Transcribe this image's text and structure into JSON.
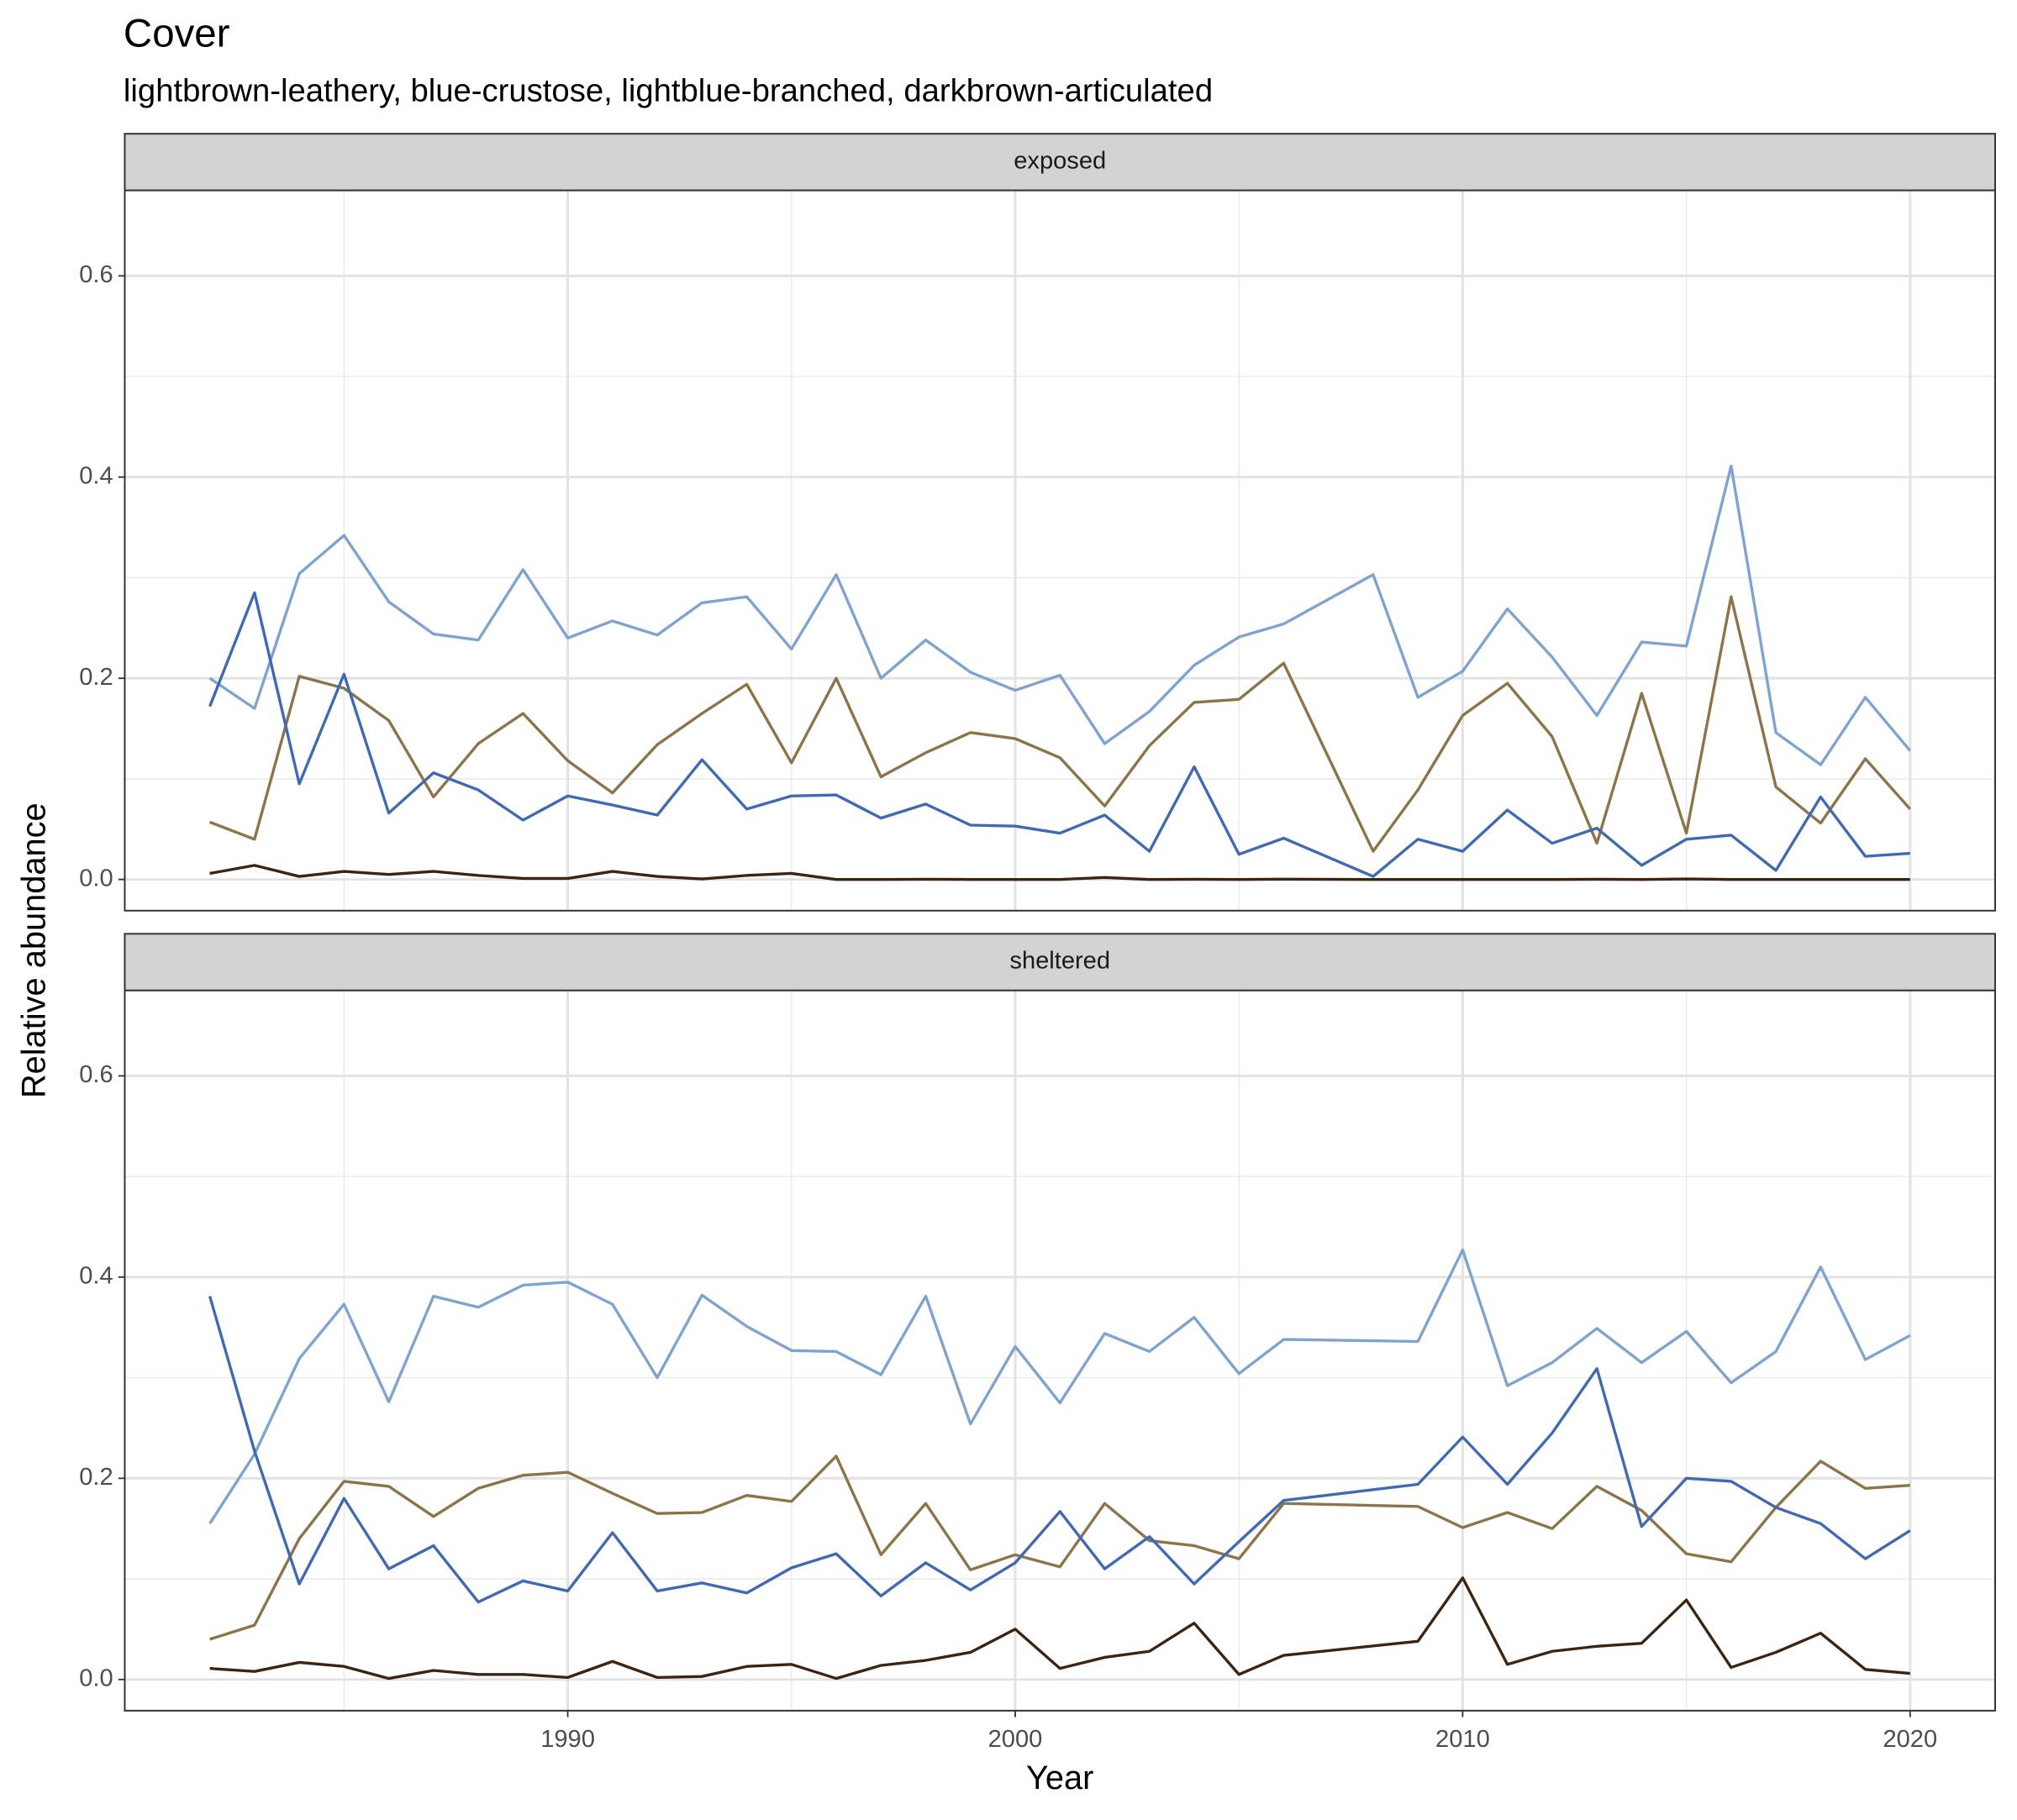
{
  "chart_data": {
    "type": "line",
    "title": "Cover",
    "subtitle": "lightbrown-leathery, blue-crustose, lightblue-branched, darkbrown-articulated",
    "x_label": "Year",
    "y_label": "Relative abundance",
    "xlim": [
      1980.1,
      2021.9
    ],
    "xticks": [
      1990,
      2000,
      2010,
      2020
    ],
    "ylim": [
      -0.031,
      0.685
    ],
    "yticks": [
      {
        "value": 0,
        "label": "0.0"
      },
      0.2,
      0.4,
      0.6
    ],
    "grid": true,
    "facets": [
      {
        "label": "exposed",
        "x": [
          1982,
          1983,
          1984,
          1985,
          1986,
          1987,
          1988,
          1989,
          1990,
          1991,
          1992,
          1993,
          1994,
          1995,
          1996,
          1997,
          1998,
          1999,
          2000,
          2001,
          2002,
          2003,
          2004,
          2005,
          2006,
          2008,
          2009,
          2010,
          2011,
          2012,
          2013,
          2014,
          2015,
          2016,
          2017,
          2018,
          2019,
          2020
        ],
        "series": [
          {
            "color": "#7fa3d0",
            "values": [
              0.2,
              0.17,
              0.304,
              0.342,
              0.276,
              0.244,
              0.238,
              0.308,
              0.24,
              0.257,
              0.243,
              0.275,
              0.281,
              0.229,
              0.303,
              0.2,
              0.238,
              0.206,
              0.188,
              0.203,
              0.135,
              0.167,
              0.213,
              0.241,
              0.254,
              0.303,
              0.181,
              0.207,
              0.269,
              0.221,
              0.163,
              0.236,
              0.232,
              0.411,
              0.146,
              0.114,
              0.181,
              0.128
            ]
          },
          {
            "color": "#8c7448",
            "values": [
              0.057,
              0.04,
              0.202,
              0.19,
              0.158,
              0.082,
              0.135,
              0.165,
              0.118,
              0.086,
              0.134,
              0.165,
              0.194,
              0.116,
              0.2,
              0.102,
              0.126,
              0.146,
              0.14,
              0.121,
              0.073,
              0.133,
              0.176,
              0.179,
              0.215,
              0.028,
              0.089,
              0.163,
              0.195,
              0.142,
              0.036,
              0.185,
              0.046,
              0.281,
              0.092,
              0.056,
              0.12,
              0.07
            ]
          },
          {
            "color": "#4069b3",
            "values": [
              0.172,
              0.285,
              0.095,
              0.204,
              0.066,
              0.106,
              0.089,
              0.059,
              0.083,
              0.074,
              0.064,
              0.119,
              0.07,
              0.083,
              0.084,
              0.061,
              0.075,
              0.054,
              0.053,
              0.046,
              0.064,
              0.028,
              0.112,
              0.025,
              0.041,
              0.003,
              0.04,
              0.028,
              0.069,
              0.036,
              0.051,
              0.014,
              0.04,
              0.044,
              0.009,
              0.082,
              0.023,
              0.026
            ]
          },
          {
            "color": "#3d2410",
            "values": [
              0.006,
              0.014,
              0.003,
              0.008,
              0.005,
              0.008,
              0.004,
              0.001,
              0.001,
              0.008,
              0.003,
              0.0005,
              0.004,
              0.006,
              0,
              0,
              0.0002,
              0,
              0,
              0,
              0.002,
              0,
              0.0002,
              0,
              0.0003,
              0,
              0,
              0,
              0,
              0,
              0.0002,
              0,
              0.0005,
              0,
              0,
              0,
              0,
              0
            ]
          }
        ]
      },
      {
        "label": "sheltered",
        "x": [
          1982,
          1983,
          1984,
          1985,
          1986,
          1987,
          1988,
          1989,
          1990,
          1991,
          1992,
          1993,
          1994,
          1995,
          1996,
          1997,
          1998,
          1999,
          2000,
          2001,
          2002,
          2003,
          2004,
          2005,
          2006,
          2009,
          2010,
          2011,
          2012,
          2013,
          2014,
          2015,
          2016,
          2017,
          2018,
          2019,
          2020
        ],
        "series": [
          {
            "color": "#7fa3d0",
            "values": [
              0.155,
              0.224,
              0.319,
              0.373,
              0.276,
              0.381,
              0.37,
              0.392,
              0.395,
              0.373,
              0.3,
              0.382,
              0.351,
              0.327,
              0.326,
              0.303,
              0.381,
              0.254,
              0.331,
              0.275,
              0.344,
              0.326,
              0.36,
              0.304,
              0.338,
              0.336,
              0.427,
              0.292,
              0.315,
              0.349,
              0.315,
              0.346,
              0.295,
              0.326,
              0.41,
              0.318,
              0.342
            ]
          },
          {
            "color": "#8c7448",
            "values": [
              0.04,
              0.054,
              0.14,
              0.197,
              0.192,
              0.162,
              0.19,
              0.203,
              0.206,
              0.185,
              0.165,
              0.166,
              0.183,
              0.177,
              0.222,
              0.124,
              0.175,
              0.109,
              0.124,
              0.112,
              0.175,
              0.138,
              0.133,
              0.12,
              0.175,
              0.172,
              0.151,
              0.166,
              0.15,
              0.192,
              0.168,
              0.125,
              0.117,
              0.171,
              0.217,
              0.19,
              0.193
            ]
          },
          {
            "color": "#4069b3",
            "values": [
              0.381,
              0.227,
              0.095,
              0.18,
              0.11,
              0.133,
              0.077,
              0.098,
              0.088,
              0.146,
              0.088,
              0.096,
              0.086,
              0.111,
              0.125,
              0.083,
              0.116,
              0.089,
              0.116,
              0.167,
              0.11,
              0.142,
              0.095,
              0.137,
              0.178,
              0.194,
              0.241,
              0.194,
              0.245,
              0.309,
              0.152,
              0.2,
              0.197,
              0.171,
              0.155,
              0.12,
              0.148
            ]
          },
          {
            "color": "#3d2410",
            "values": [
              0.011,
              0.008,
              0.017,
              0.013,
              0.001,
              0.009,
              0.005,
              0.005,
              0.002,
              0.018,
              0.002,
              0.003,
              0.013,
              0.015,
              0.001,
              0.014,
              0.019,
              0.027,
              0.05,
              0.011,
              0.022,
              0.028,
              0.056,
              0.005,
              0.024,
              0.038,
              0.101,
              0.015,
              0.028,
              0.033,
              0.036,
              0.079,
              0.012,
              0.027,
              0.046,
              0.01,
              0.006
            ]
          }
        ]
      }
    ]
  }
}
